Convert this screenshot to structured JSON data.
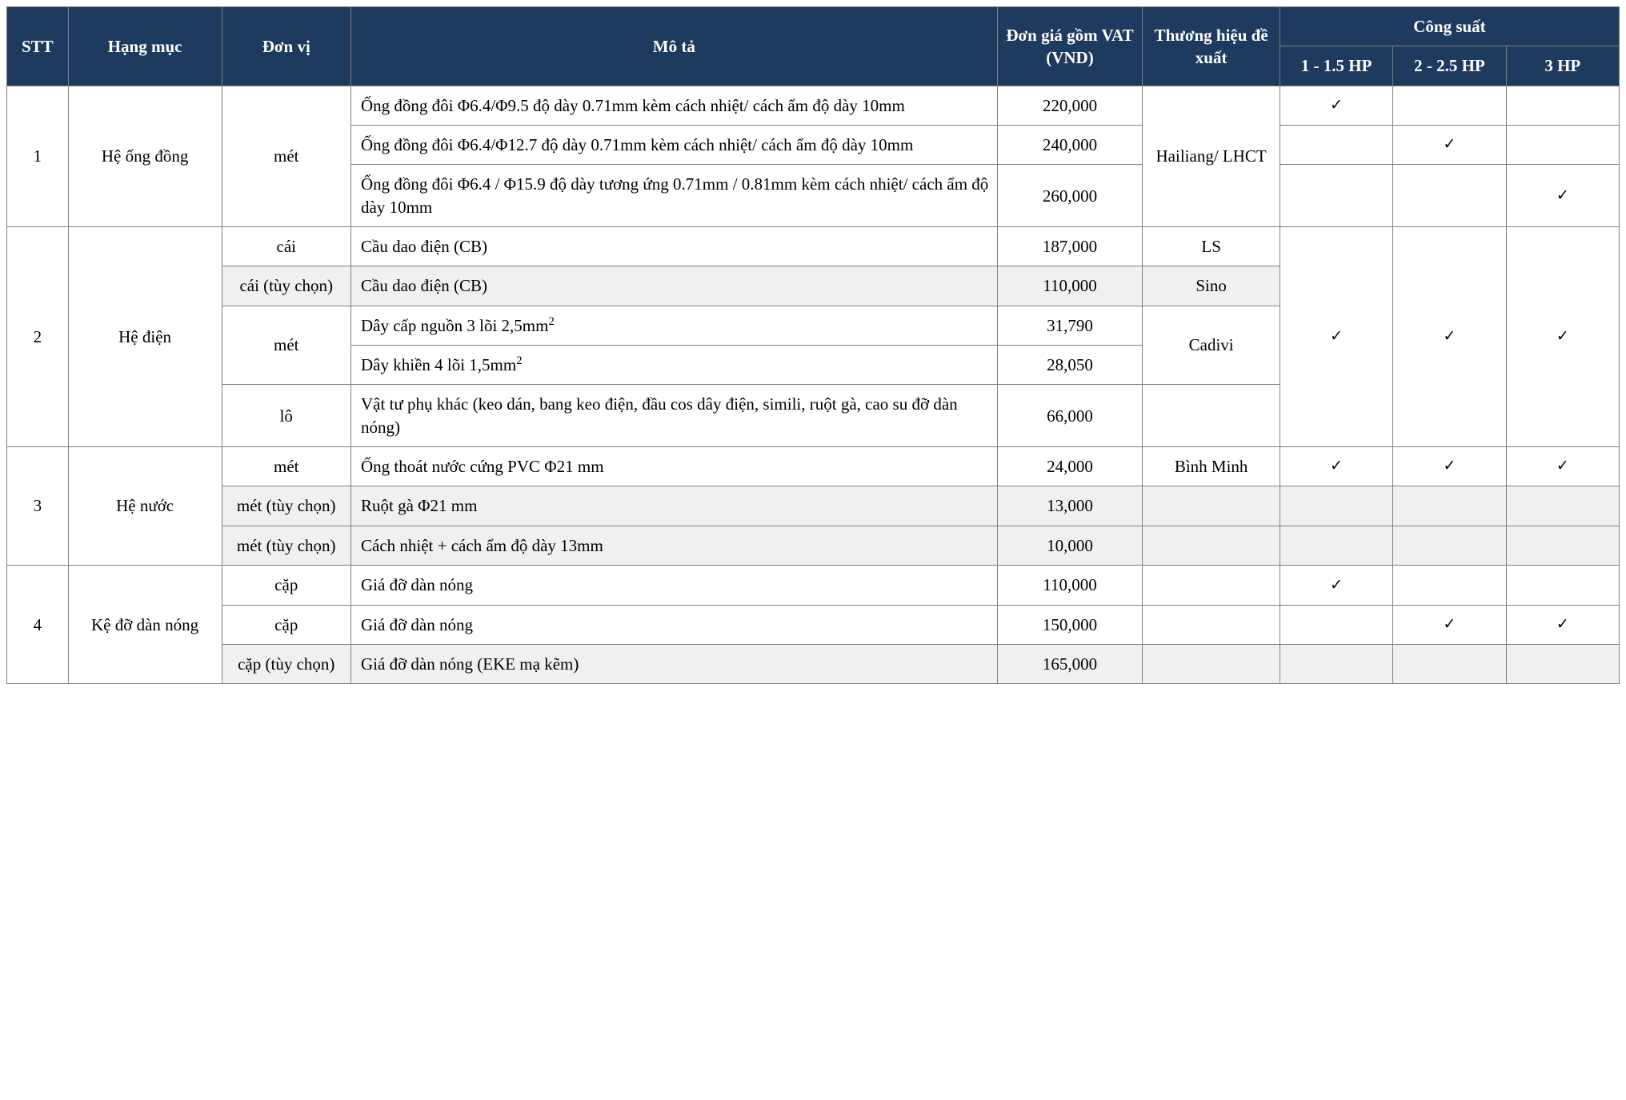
{
  "header": {
    "stt": "STT",
    "hangmuc": "Hạng mục",
    "donvi": "Đơn vị",
    "mota": "Mô tả",
    "dongia": "Đơn giá gồm VAT (VND)",
    "thuonghieu": "Thương hiệu đề xuất",
    "congsuat": "Công suất",
    "hp1": "1 - 1.5 HP",
    "hp2": "2 - 2.5 HP",
    "hp3": "3 HP"
  },
  "colors": {
    "header_bg": "#1f3a5f",
    "header_fg": "#ffffff",
    "border": "#808080",
    "shade": "#f0f0f0",
    "text": "#000000",
    "page_bg": "#ffffff"
  },
  "check_glyph": "✓",
  "groups": [
    {
      "stt": "1",
      "hangmuc": "Hệ ống đồng",
      "donvi_span": "mét",
      "thuonghieu_span": "Hailiang/ LHCT",
      "rows": [
        {
          "mota": "Ống đồng đôi Φ6.4/Φ9.5 độ dày 0.71mm kèm cách nhiệt/ cách ẩm độ dày 10mm",
          "gia": "220,000",
          "hp1": true,
          "hp2": false,
          "hp3": false
        },
        {
          "mota": "Ống đồng đôi Φ6.4/Φ12.7 độ dày 0.71mm kèm cách nhiệt/ cách ẩm độ dày 10mm",
          "gia": "240,000",
          "hp1": false,
          "hp2": true,
          "hp3": false
        },
        {
          "mota": "Ống đồng đôi Φ6.4 / Φ15.9 độ dày tương ứng 0.71mm / 0.81mm kèm cách nhiệt/ cách ẩm độ dày 10mm",
          "gia": "260,000",
          "hp1": false,
          "hp2": false,
          "hp3": true
        }
      ]
    },
    {
      "stt": "2",
      "hangmuc": "Hệ điện",
      "rows": [
        {
          "donvi": "cái",
          "mota": "Cầu dao điện (CB)",
          "gia": "187,000",
          "th": "LS",
          "shade": false
        },
        {
          "donvi": "cái (tùy chọn)",
          "mota": "Cầu dao điện (CB)",
          "gia": "110,000",
          "th": "Sino",
          "shade": true
        },
        {
          "donvi_span2": "mét",
          "mota": "Dây cấp nguồn 3 lõi 2,5mm²",
          "gia": "31,790",
          "th_span2": "Cadivi",
          "shade": false
        },
        {
          "mota": "Dây khiền 4 lõi 1,5mm²",
          "gia": "28,050",
          "shade": false
        },
        {
          "donvi": "lô",
          "mota": "Vật tư phụ khác (keo dán, bang keo điện, đầu cos dây điện, simili, ruột gà, cao su đỡ dàn nóng)",
          "gia": "66,000",
          "th": "",
          "shade": false
        }
      ],
      "hp_all": {
        "hp1": true,
        "hp2": true,
        "hp3": true
      }
    },
    {
      "stt": "3",
      "hangmuc": "Hệ nước",
      "rows": [
        {
          "donvi": "mét",
          "mota": "Ống thoát nước cứng PVC Φ21 mm",
          "gia": "24,000",
          "th": "Bình Minh",
          "hp1": true,
          "hp2": true,
          "hp3": true,
          "shade": false
        },
        {
          "donvi": "mét (tùy chọn)",
          "mota": "Ruột gà Φ21 mm",
          "gia": "13,000",
          "th": "",
          "hp1": false,
          "hp2": false,
          "hp3": false,
          "shade": true
        },
        {
          "donvi": "mét (tùy chọn)",
          "mota": "Cách nhiệt + cách ẩm độ dày 13mm",
          "gia": "10,000",
          "th": "",
          "hp1": false,
          "hp2": false,
          "hp3": false,
          "shade": true
        }
      ]
    },
    {
      "stt": "4",
      "hangmuc": "Kệ đỡ dàn nóng",
      "rows": [
        {
          "donvi": "cặp",
          "mota": "Giá đỡ dàn nóng",
          "gia": "110,000",
          "th": "",
          "hp1": true,
          "hp2": false,
          "hp3": false,
          "shade": false
        },
        {
          "donvi": "cặp",
          "mota": "Giá đỡ dàn nóng",
          "gia": "150,000",
          "th": "",
          "hp1": false,
          "hp2": true,
          "hp3": true,
          "shade": false
        },
        {
          "donvi": "cặp (tùy chọn)",
          "mota": "Giá đỡ dàn nóng (EKE mạ kẽm)",
          "gia": "165,000",
          "th": "",
          "hp1": false,
          "hp2": false,
          "hp3": false,
          "shade": true
        }
      ]
    }
  ]
}
